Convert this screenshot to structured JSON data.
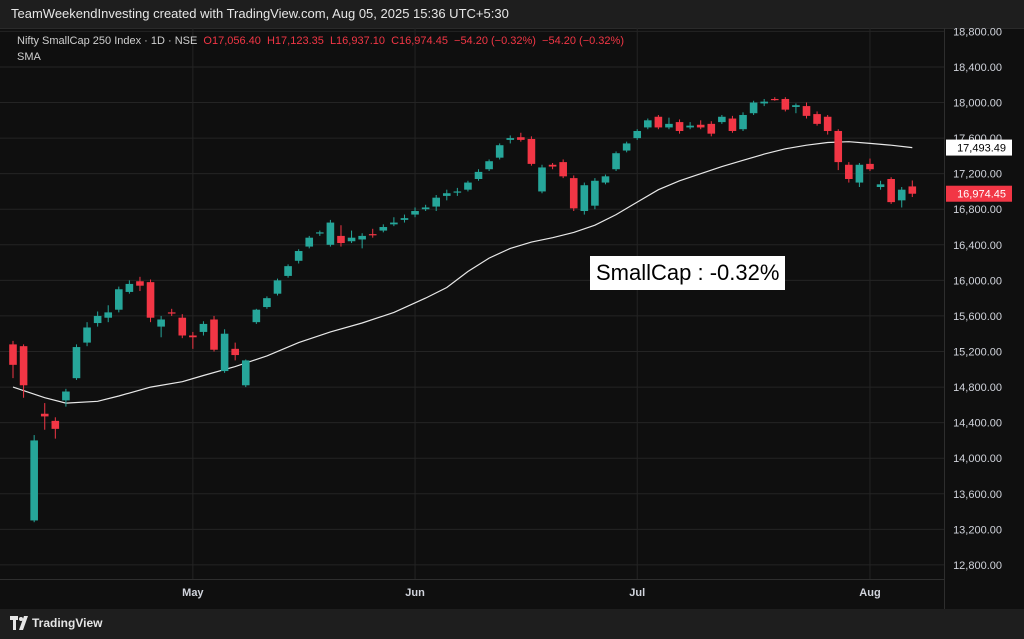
{
  "topbar": {
    "text": "TeamWeekendInvesting created with TradingView.com, Aug 05, 2025 15:36 UTC+5:30"
  },
  "header": {
    "symbol": "Nifty SmallCap 250 Index · 1D · NSE",
    "open": "O17,056.40",
    "high": "H17,123.35",
    "low": "L16,937.10",
    "close": "C16,974.45",
    "change": "−54.20 (−0.32%)",
    "change2": "−54.20 (−0.32%)"
  },
  "sma_label": "SMA",
  "annotation": "SmallCap : -0.32%",
  "footer": {
    "brand": "TradingView"
  },
  "colors": {
    "up": "#26a69a",
    "down": "#f23645",
    "sma": "#e8e8e8",
    "grid": "#242424",
    "bg": "#0f0f0f"
  },
  "chart_data": {
    "type": "candlestick",
    "ylim": [
      12600,
      18900
    ],
    "y_ticks": [
      12800,
      13200,
      13600,
      14000,
      14400,
      14800,
      15200,
      15600,
      16000,
      16400,
      16800,
      17200,
      17600,
      18000,
      18400,
      18800
    ],
    "y_tick_labels": [
      "12,800.00",
      "13,200.00",
      "13,600.00",
      "14,000.00",
      "14,400.00",
      "14,800.00",
      "15,200.00",
      "15,600.00",
      "16,000.00",
      "16,400.00",
      "16,800.00",
      "17,200.00",
      "17,600.00",
      "18,000.00",
      "18,400.00",
      "18,800.00"
    ],
    "x_labels": [
      {
        "label": "May",
        "index": 17
      },
      {
        "label": "Jun",
        "index": 38
      },
      {
        "label": "Jul",
        "index": 59
      },
      {
        "label": "Aug",
        "index": 81
      }
    ],
    "sma_value_label": "17,493.49",
    "sma_value": 17493.49,
    "last_price_label": "16,974.45",
    "last_price": 16974.45,
    "candles": [
      {
        "o": 15280,
        "h": 15320,
        "l": 14900,
        "c": 15050
      },
      {
        "o": 15260,
        "h": 15280,
        "l": 14680,
        "c": 14820
      },
      {
        "o": 13300,
        "h": 14260,
        "l": 13280,
        "c": 14200
      },
      {
        "o": 14500,
        "h": 14620,
        "l": 14320,
        "c": 14470
      },
      {
        "o": 14420,
        "h": 14460,
        "l": 14220,
        "c": 14330
      },
      {
        "o": 14650,
        "h": 14780,
        "l": 14580,
        "c": 14750
      },
      {
        "o": 14900,
        "h": 15280,
        "l": 14880,
        "c": 15250
      },
      {
        "o": 15300,
        "h": 15530,
        "l": 15260,
        "c": 15470
      },
      {
        "o": 15520,
        "h": 15650,
        "l": 15480,
        "c": 15600
      },
      {
        "o": 15580,
        "h": 15720,
        "l": 15530,
        "c": 15640
      },
      {
        "o": 15670,
        "h": 15930,
        "l": 15640,
        "c": 15900
      },
      {
        "o": 15870,
        "h": 16000,
        "l": 15850,
        "c": 15960
      },
      {
        "o": 15990,
        "h": 16040,
        "l": 15880,
        "c": 15940
      },
      {
        "o": 15980,
        "h": 16010,
        "l": 15530,
        "c": 15580
      },
      {
        "o": 15480,
        "h": 15600,
        "l": 15360,
        "c": 15560
      },
      {
        "o": 15640,
        "h": 15680,
        "l": 15600,
        "c": 15630
      },
      {
        "o": 15580,
        "h": 15620,
        "l": 15350,
        "c": 15380
      },
      {
        "o": 15380,
        "h": 15420,
        "l": 15230,
        "c": 15360
      },
      {
        "o": 15420,
        "h": 15540,
        "l": 15380,
        "c": 15510
      },
      {
        "o": 15560,
        "h": 15600,
        "l": 15200,
        "c": 15220
      },
      {
        "o": 14980,
        "h": 15450,
        "l": 14960,
        "c": 15400
      },
      {
        "o": 15230,
        "h": 15300,
        "l": 15100,
        "c": 15160
      },
      {
        "o": 14820,
        "h": 15110,
        "l": 14800,
        "c": 15100
      },
      {
        "o": 15530,
        "h": 15680,
        "l": 15510,
        "c": 15670
      },
      {
        "o": 15700,
        "h": 15820,
        "l": 15680,
        "c": 15800
      },
      {
        "o": 15850,
        "h": 16020,
        "l": 15830,
        "c": 16000
      },
      {
        "o": 16050,
        "h": 16180,
        "l": 16030,
        "c": 16160
      },
      {
        "o": 16220,
        "h": 16350,
        "l": 16190,
        "c": 16330
      },
      {
        "o": 16380,
        "h": 16500,
        "l": 16360,
        "c": 16480
      },
      {
        "o": 16530,
        "h": 16560,
        "l": 16500,
        "c": 16540
      },
      {
        "o": 16400,
        "h": 16680,
        "l": 16380,
        "c": 16650
      },
      {
        "o": 16500,
        "h": 16620,
        "l": 16380,
        "c": 16420
      },
      {
        "o": 16440,
        "h": 16560,
        "l": 16420,
        "c": 16480
      },
      {
        "o": 16460,
        "h": 16530,
        "l": 16360,
        "c": 16500
      },
      {
        "o": 16520,
        "h": 16580,
        "l": 16480,
        "c": 16510
      },
      {
        "o": 16560,
        "h": 16630,
        "l": 16540,
        "c": 16600
      },
      {
        "o": 16630,
        "h": 16710,
        "l": 16610,
        "c": 16650
      },
      {
        "o": 16680,
        "h": 16740,
        "l": 16650,
        "c": 16700
      },
      {
        "o": 16740,
        "h": 16820,
        "l": 16710,
        "c": 16780
      },
      {
        "o": 16800,
        "h": 16850,
        "l": 16780,
        "c": 16820
      },
      {
        "o": 16830,
        "h": 16960,
        "l": 16780,
        "c": 16930
      },
      {
        "o": 16950,
        "h": 17020,
        "l": 16900,
        "c": 16980
      },
      {
        "o": 16990,
        "h": 17040,
        "l": 16950,
        "c": 17000
      },
      {
        "o": 17020,
        "h": 17120,
        "l": 17000,
        "c": 17100
      },
      {
        "o": 17140,
        "h": 17250,
        "l": 17120,
        "c": 17220
      },
      {
        "o": 17250,
        "h": 17360,
        "l": 17230,
        "c": 17340
      },
      {
        "o": 17380,
        "h": 17540,
        "l": 17360,
        "c": 17520
      },
      {
        "o": 17580,
        "h": 17630,
        "l": 17540,
        "c": 17600
      },
      {
        "o": 17610,
        "h": 17660,
        "l": 17560,
        "c": 17580
      },
      {
        "o": 17590,
        "h": 17620,
        "l": 17290,
        "c": 17310
      },
      {
        "o": 17000,
        "h": 17300,
        "l": 16980,
        "c": 17270
      },
      {
        "o": 17300,
        "h": 17320,
        "l": 17250,
        "c": 17280
      },
      {
        "o": 17330,
        "h": 17360,
        "l": 17150,
        "c": 17170
      },
      {
        "o": 17150,
        "h": 17180,
        "l": 16780,
        "c": 16810
      },
      {
        "o": 16780,
        "h": 17100,
        "l": 16740,
        "c": 17070
      },
      {
        "o": 16840,
        "h": 17150,
        "l": 16800,
        "c": 17120
      },
      {
        "o": 17100,
        "h": 17190,
        "l": 17080,
        "c": 17170
      },
      {
        "o": 17250,
        "h": 17450,
        "l": 17230,
        "c": 17430
      },
      {
        "o": 17460,
        "h": 17560,
        "l": 17440,
        "c": 17540
      },
      {
        "o": 17600,
        "h": 17700,
        "l": 17580,
        "c": 17680
      },
      {
        "o": 17720,
        "h": 17820,
        "l": 17700,
        "c": 17800
      },
      {
        "o": 17840,
        "h": 17860,
        "l": 17700,
        "c": 17720
      },
      {
        "o": 17720,
        "h": 17830,
        "l": 17700,
        "c": 17760
      },
      {
        "o": 17780,
        "h": 17810,
        "l": 17650,
        "c": 17680
      },
      {
        "o": 17720,
        "h": 17780,
        "l": 17700,
        "c": 17740
      },
      {
        "o": 17750,
        "h": 17800,
        "l": 17700,
        "c": 17720
      },
      {
        "o": 17760,
        "h": 17790,
        "l": 17620,
        "c": 17650
      },
      {
        "o": 17780,
        "h": 17860,
        "l": 17760,
        "c": 17840
      },
      {
        "o": 17820,
        "h": 17850,
        "l": 17660,
        "c": 17680
      },
      {
        "o": 17700,
        "h": 17890,
        "l": 17680,
        "c": 17860
      },
      {
        "o": 17880,
        "h": 18020,
        "l": 17860,
        "c": 18000
      },
      {
        "o": 17990,
        "h": 18040,
        "l": 17960,
        "c": 18010
      },
      {
        "o": 18040,
        "h": 18060,
        "l": 18020,
        "c": 18030
      },
      {
        "o": 18040,
        "h": 18060,
        "l": 17900,
        "c": 17920
      },
      {
        "o": 17950,
        "h": 17990,
        "l": 17880,
        "c": 17970
      },
      {
        "o": 17960,
        "h": 18000,
        "l": 17820,
        "c": 17850
      },
      {
        "o": 17870,
        "h": 17900,
        "l": 17740,
        "c": 17760
      },
      {
        "o": 17840,
        "h": 17860,
        "l": 17640,
        "c": 17680
      },
      {
        "o": 17680,
        "h": 17700,
        "l": 17240,
        "c": 17330
      },
      {
        "o": 17300,
        "h": 17330,
        "l": 17100,
        "c": 17140
      },
      {
        "o": 17100,
        "h": 17320,
        "l": 17050,
        "c": 17300
      },
      {
        "o": 17310,
        "h": 17370,
        "l": 17230,
        "c": 17250
      },
      {
        "o": 17050,
        "h": 17120,
        "l": 17020,
        "c": 17080
      },
      {
        "o": 17140,
        "h": 17160,
        "l": 16860,
        "c": 16880
      },
      {
        "o": 16900,
        "h": 17050,
        "l": 16820,
        "c": 17020
      },
      {
        "o": 17056.4,
        "h": 17123.35,
        "l": 16937.1,
        "c": 16974.45
      }
    ],
    "sma": [
      {
        "i": 0,
        "v": 14800
      },
      {
        "i": 3,
        "v": 14680
      },
      {
        "i": 5,
        "v": 14620
      },
      {
        "i": 8,
        "v": 14640
      },
      {
        "i": 10,
        "v": 14700
      },
      {
        "i": 13,
        "v": 14800
      },
      {
        "i": 16,
        "v": 14860
      },
      {
        "i": 18,
        "v": 14930
      },
      {
        "i": 21,
        "v": 15030
      },
      {
        "i": 24,
        "v": 15150
      },
      {
        "i": 27,
        "v": 15300
      },
      {
        "i": 30,
        "v": 15420
      },
      {
        "i": 33,
        "v": 15520
      },
      {
        "i": 36,
        "v": 15640
      },
      {
        "i": 39,
        "v": 15800
      },
      {
        "i": 41,
        "v": 15920
      },
      {
        "i": 43,
        "v": 16100
      },
      {
        "i": 45,
        "v": 16250
      },
      {
        "i": 47,
        "v": 16360
      },
      {
        "i": 49,
        "v": 16430
      },
      {
        "i": 51,
        "v": 16480
      },
      {
        "i": 53,
        "v": 16540
      },
      {
        "i": 55,
        "v": 16620
      },
      {
        "i": 57,
        "v": 16740
      },
      {
        "i": 59,
        "v": 16880
      },
      {
        "i": 61,
        "v": 17020
      },
      {
        "i": 63,
        "v": 17120
      },
      {
        "i": 65,
        "v": 17200
      },
      {
        "i": 67,
        "v": 17280
      },
      {
        "i": 69,
        "v": 17350
      },
      {
        "i": 71,
        "v": 17420
      },
      {
        "i": 73,
        "v": 17480
      },
      {
        "i": 75,
        "v": 17520
      },
      {
        "i": 77,
        "v": 17550
      },
      {
        "i": 79,
        "v": 17560
      },
      {
        "i": 81,
        "v": 17540
      },
      {
        "i": 83,
        "v": 17520
      },
      {
        "i": 85,
        "v": 17493
      }
    ]
  }
}
